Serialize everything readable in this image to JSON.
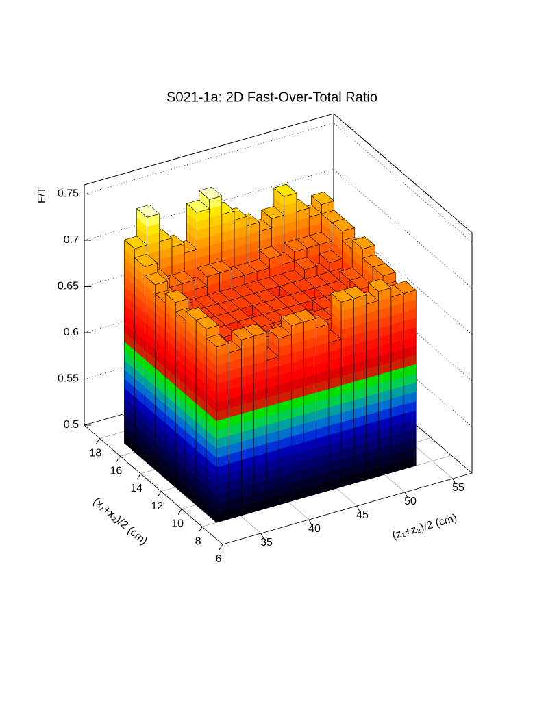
{
  "chart_data": {
    "type": "bar3d",
    "title": "S021-1a: 2D Fast-Over-Total Ratio",
    "xlabel": "(z₁+z₂)/2 (cm)",
    "ylabel": "(x₁+x₂)/2 (cm)",
    "zlabel": "F/T",
    "xbins": [
      32.5,
      33.8,
      35.1,
      36.4,
      37.7,
      39,
      40.3,
      41.6,
      42.9,
      44.2,
      45.5,
      46.8,
      48.1,
      49.4,
      50.7,
      52,
      53.3
    ],
    "ybins": [
      8,
      9,
      10,
      11,
      12,
      13,
      14,
      15,
      16,
      17
    ],
    "values": [
      [
        0.69,
        0.68,
        0.69,
        0.69,
        0.66,
        0.68,
        0.69,
        0.69,
        0.68,
        0.66,
        0.7,
        0.7,
        0.69,
        0.7,
        0.69,
        0.69
      ],
      [
        0.7,
        0.67,
        0.66,
        0.66,
        0.66,
        0.66,
        0.67,
        0.66,
        0.66,
        0.66,
        0.66,
        0.67,
        0.66,
        0.67,
        0.68,
        0.68
      ],
      [
        0.7,
        0.66,
        0.66,
        0.65,
        0.66,
        0.66,
        0.66,
        0.66,
        0.65,
        0.66,
        0.66,
        0.66,
        0.66,
        0.66,
        0.66,
        0.69
      ],
      [
        0.69,
        0.66,
        0.66,
        0.66,
        0.65,
        0.66,
        0.66,
        0.66,
        0.66,
        0.66,
        0.65,
        0.66,
        0.66,
        0.66,
        0.67,
        0.69
      ],
      [
        0.7,
        0.67,
        0.66,
        0.66,
        0.66,
        0.66,
        0.65,
        0.66,
        0.66,
        0.66,
        0.66,
        0.65,
        0.66,
        0.66,
        0.67,
        0.7
      ],
      [
        0.69,
        0.67,
        0.66,
        0.66,
        0.66,
        0.66,
        0.66,
        0.66,
        0.66,
        0.65,
        0.66,
        0.66,
        0.66,
        0.66,
        0.66,
        0.69
      ],
      [
        0.7,
        0.68,
        0.67,
        0.66,
        0.66,
        0.66,
        0.66,
        0.66,
        0.66,
        0.66,
        0.66,
        0.66,
        0.67,
        0.66,
        0.67,
        0.7
      ],
      [
        0.71,
        0.69,
        0.68,
        0.68,
        0.67,
        0.68,
        0.68,
        0.67,
        0.67,
        0.67,
        0.68,
        0.67,
        0.68,
        0.68,
        0.68,
        0.7
      ],
      [
        0.72,
        0.75,
        0.72,
        0.71,
        0.7,
        0.74,
        0.75,
        0.73,
        0.72,
        0.71,
        0.7,
        0.71,
        0.73,
        0.71,
        0.7,
        0.71
      ]
    ],
    "xlim": [
      31,
      57
    ],
    "ylim": [
      6,
      19.5
    ],
    "zlim": [
      0.5,
      0.76
    ],
    "xticks": [
      35,
      40,
      45,
      50,
      55
    ],
    "yticks": [
      6,
      8,
      10,
      12,
      14,
      16,
      18
    ],
    "zticks": [
      0.5,
      0.55,
      0.6,
      0.65,
      0.7,
      0.75
    ],
    "palette": [
      "#000010",
      "#000028",
      "#000048",
      "#000068",
      "#00008c",
      "#0000b4",
      "#0030d8",
      "#0070d0",
      "#00a0a0",
      "#00d050",
      "#00e000",
      "#cc2000",
      "#e00000",
      "#ff0000",
      "#ff1000",
      "#ff2800",
      "#ff4000",
      "#ff5800",
      "#ff7000",
      "#ff8800",
      "#ffa000",
      "#ffb800",
      "#ffd000",
      "#ffe800",
      "#ffff60",
      "#ffffc0"
    ],
    "grid": true
  }
}
